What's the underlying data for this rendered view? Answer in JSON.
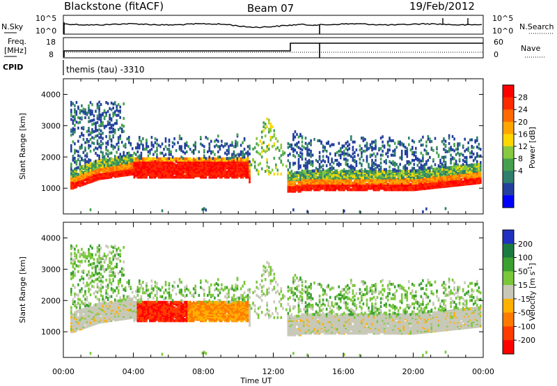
{
  "header": {
    "station": "Blackstone (fitACF)",
    "beam": "Beam 07",
    "date": "19/Feb/2012"
  },
  "param_panels": {
    "nsky_label": "N.Sky",
    "nsearch_label": "N.Search",
    "count_ticks": [
      "10^5",
      "10^0"
    ],
    "freq_label_1": "Freq.",
    "freq_label_2": "[MHz]",
    "freq_ticks": [
      "18",
      "8"
    ],
    "nave_label": "Nave",
    "nave_ticks": [
      "60",
      "0"
    ],
    "cpid_label": "CPID",
    "cpid_text": "themis (tau) -3310"
  },
  "colors": {
    "power": [
      "#0000ff",
      "#23409e",
      "#2f7f6b",
      "#46a050",
      "#87c940",
      "#ffd700",
      "#ffa500",
      "#ff6a00",
      "#ff2a00",
      "#ff0000"
    ],
    "velocity": [
      "#2030c0",
      "#1a7a40",
      "#3aa030",
      "#7ac83a",
      "#c8c8b8",
      "#ffb000",
      "#ff7a00",
      "#ff3c00",
      "#ff0000"
    ]
  },
  "chart_data": [
    {
      "type": "heatmap",
      "title": "",
      "xlabel": "Time UT",
      "ylabel": "Slant Range [km]",
      "x_ticks": [
        "00:00",
        "04:00",
        "08:00",
        "12:00",
        "16:00",
        "20:00",
        "00:00"
      ],
      "x_range_hours": [
        0,
        24
      ],
      "y_ticks": [
        1000,
        2000,
        3000,
        4000
      ],
      "ylim": [
        180,
        4500
      ],
      "colorbar": {
        "label": "Power [dB]",
        "ticks": [
          "28",
          "24",
          "20",
          "16",
          "12",
          "8",
          "4"
        ],
        "range": [
          0,
          30
        ]
      }
    },
    {
      "type": "heatmap",
      "title": "",
      "xlabel": "Time UT",
      "ylabel": "Slant Range [km]",
      "x_ticks": [
        "00:00",
        "04:00",
        "08:00",
        "12:00",
        "16:00",
        "20:00",
        "00:00"
      ],
      "x_range_hours": [
        0,
        24
      ],
      "y_ticks": [
        1000,
        2000,
        3000,
        4000
      ],
      "ylim": [
        180,
        4500
      ],
      "colorbar": {
        "label": "Velocity [m s^-1]",
        "ticks": [
          "200",
          "100",
          "50",
          "15",
          "-15",
          "-50",
          "-100",
          "-200"
        ],
        "range": [
          -250,
          250
        ]
      }
    }
  ]
}
